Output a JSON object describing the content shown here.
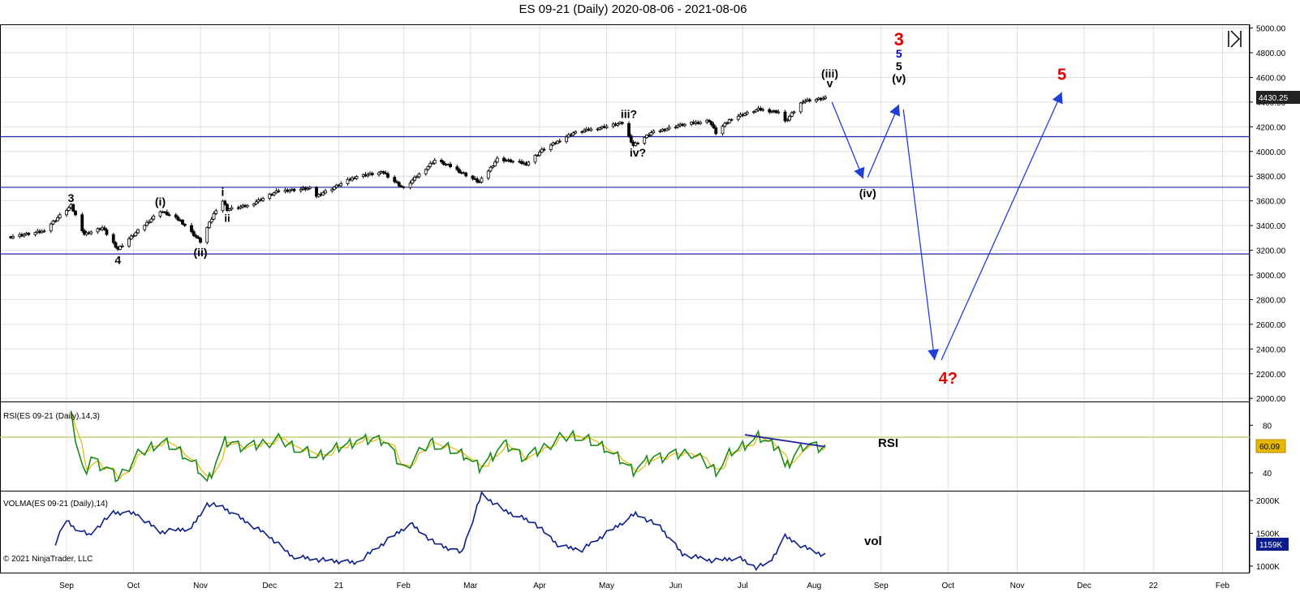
{
  "title": "ES 09-21 (Daily)  2020-08-06 - 2021-08-06",
  "copyright": "© 2021 NinjaTrader, LLC",
  "colors": {
    "grid": "#e0e0e0",
    "candle_up": "#ffffff",
    "candle_down": "#000000",
    "hline": "#2222aa",
    "arrow": "#1f3fd8",
    "rsi": "#1a8a1a",
    "rsi_avg": "#e8b800",
    "rsi_level": "#b5c95a",
    "vol": "#0a1d8a",
    "wave_black": "#000000",
    "wave_red": "#e00000",
    "wave_blue": "#0000cc"
  },
  "chart_data": [
    {
      "type": "candlestick",
      "title": "ES 09-21 (Daily)  2020-08-06 - 2021-08-06",
      "x_tick_labels": [
        "Sep",
        "Oct",
        "Nov",
        "Dec",
        "21",
        "Feb",
        "Mar",
        "Apr",
        "May",
        "Jun",
        "Jul",
        "Aug",
        "Sep",
        "Oct",
        "Nov",
        "Dec",
        "22",
        "Feb"
      ],
      "y_tick_labels": [
        "5000.00",
        "4800.00",
        "4600.00",
        "4400.00",
        "4200.00",
        "4000.00",
        "3800.00",
        "3600.00",
        "3400.00",
        "3200.00",
        "3000.00",
        "2800.00",
        "2600.00",
        "2400.00",
        "2200.00",
        "2000.00"
      ],
      "ylim": [
        1975,
        5030
      ],
      "last_price": "4430.25",
      "price_anchors": [
        [
          "2020-08-06",
          3310
        ],
        [
          "2020-08-20",
          3350
        ],
        [
          "2020-09-02",
          3560
        ],
        [
          "2020-09-08",
          3330
        ],
        [
          "2020-09-16",
          3380
        ],
        [
          "2020-09-23",
          3210
        ],
        [
          "2020-10-01",
          3340
        ],
        [
          "2020-10-12",
          3520
        ],
        [
          "2020-10-21",
          3440
        ],
        [
          "2020-10-30",
          3270
        ],
        [
          "2020-11-06",
          3530
        ],
        [
          "2020-11-09",
          3600
        ],
        [
          "2020-11-11",
          3530
        ],
        [
          "2020-11-20",
          3560
        ],
        [
          "2020-12-04",
          3680
        ],
        [
          "2020-12-18",
          3700
        ],
        [
          "2020-12-21",
          3640
        ],
        [
          "2021-01-08",
          3800
        ],
        [
          "2021-01-20",
          3830
        ],
        [
          "2021-01-29",
          3700
        ],
        [
          "2021-02-12",
          3930
        ],
        [
          "2021-02-19",
          3880
        ],
        [
          "2021-03-04",
          3750
        ],
        [
          "2021-03-12",
          3940
        ],
        [
          "2021-03-25",
          3900
        ],
        [
          "2021-04-01",
          4010
        ],
        [
          "2021-04-15",
          4150
        ],
        [
          "2021-04-29",
          4200
        ],
        [
          "2021-05-07",
          4230
        ],
        [
          "2021-05-12",
          4050
        ],
        [
          "2021-05-20",
          4150
        ],
        [
          "2021-06-01",
          4210
        ],
        [
          "2021-06-15",
          4250
        ],
        [
          "2021-06-18",
          4150
        ],
        [
          "2021-06-25",
          4270
        ],
        [
          "2021-07-07",
          4340
        ],
        [
          "2021-07-16",
          4320
        ],
        [
          "2021-07-19",
          4240
        ],
        [
          "2021-07-27",
          4410
        ],
        [
          "2021-08-06",
          4430
        ]
      ],
      "horizontal_lines": [
        4120,
        3710,
        3170
      ],
      "projection_path": [
        [
          "2021-08-09",
          4400
        ],
        [
          "2021-08-23",
          3780
        ],
        [
          "2021-08-25",
          3790
        ],
        [
          "2021-09-08",
          4380
        ],
        [
          "2021-09-10",
          4340
        ],
        [
          "2021-09-24",
          2310
        ],
        [
          "2021-09-27",
          2310
        ],
        [
          "2021-11-20",
          4480
        ]
      ],
      "wave_labels": [
        {
          "text": "3",
          "date": "2020-09-02",
          "price": 3590,
          "color": "black",
          "size": 14
        },
        {
          "text": "4",
          "date": "2020-09-23",
          "price": 3090,
          "color": "black",
          "size": 14
        },
        {
          "text": "(i)",
          "date": "2020-10-12",
          "price": 3560,
          "color": "black",
          "size": 14
        },
        {
          "text": "(ii)",
          "date": "2020-10-30",
          "price": 3150,
          "color": "black",
          "size": 14
        },
        {
          "text": "i",
          "date": "2020-11-09",
          "price": 3640,
          "color": "black",
          "size": 14
        },
        {
          "text": "ii",
          "date": "2020-11-11",
          "price": 3430,
          "color": "black",
          "size": 13
        },
        {
          "text": "iii?",
          "date": "2021-05-10",
          "price": 4270,
          "color": "black",
          "size": 14
        },
        {
          "text": "iv?",
          "date": "2021-05-14",
          "price": 3960,
          "color": "black",
          "size": 14
        },
        {
          "text": "(iii)",
          "date": "2021-08-08",
          "price": 4600,
          "color": "black",
          "size": 14
        },
        {
          "text": "v",
          "date": "2021-08-08",
          "price": 4520,
          "color": "black",
          "size": 14
        },
        {
          "text": "(iv)",
          "date": "2021-08-25",
          "price": 3630,
          "color": "black",
          "size": 14
        },
        {
          "text": "3",
          "date": "2021-09-08",
          "price": 4860,
          "color": "red",
          "size": 22
        },
        {
          "text": "5",
          "date": "2021-09-08",
          "price": 4760,
          "color": "blue",
          "size": 14
        },
        {
          "text": "5",
          "date": "2021-09-08",
          "price": 4660,
          "color": "black",
          "size": 14
        },
        {
          "text": "(v)",
          "date": "2021-09-08",
          "price": 4560,
          "color": "black",
          "size": 14
        },
        {
          "text": "4?",
          "date": "2021-09-30",
          "price": 2120,
          "color": "red",
          "size": 20
        },
        {
          "text": "5",
          "date": "2021-11-20",
          "price": 4580,
          "color": "red",
          "size": 20
        }
      ]
    },
    {
      "type": "line",
      "label": "RSI(ES 09-21 (Daily),14,3)",
      "annotation": "RSI",
      "y_tick_labels": [
        "80",
        "40"
      ],
      "ylim": [
        25,
        100
      ],
      "level": 70,
      "last_value": "60.09",
      "series_anchors": [
        [
          "2020-09-02",
          97
        ],
        [
          "2020-09-04",
          66
        ],
        [
          "2020-09-08",
          38
        ],
        [
          "2020-09-11",
          52
        ],
        [
          "2020-09-17",
          44
        ],
        [
          "2020-09-23",
          35
        ],
        [
          "2020-10-02",
          55
        ],
        [
          "2020-10-12",
          67
        ],
        [
          "2020-10-20",
          60
        ],
        [
          "2020-10-28",
          46
        ],
        [
          "2020-11-02",
          32
        ],
        [
          "2020-11-10",
          66
        ],
        [
          "2020-11-20",
          61
        ],
        [
          "2020-12-04",
          68
        ],
        [
          "2020-12-21",
          54
        ],
        [
          "2021-01-08",
          67
        ],
        [
          "2021-01-20",
          68
        ],
        [
          "2021-01-29",
          43
        ],
        [
          "2021-02-10",
          66
        ],
        [
          "2021-02-26",
          55
        ],
        [
          "2021-03-04",
          44
        ],
        [
          "2021-03-15",
          64
        ],
        [
          "2021-03-25",
          52
        ],
        [
          "2021-04-09",
          69
        ],
        [
          "2021-04-16",
          72
        ],
        [
          "2021-04-29",
          62
        ],
        [
          "2021-05-12",
          42
        ],
        [
          "2021-05-20",
          52
        ],
        [
          "2021-06-07",
          57
        ],
        [
          "2021-06-18",
          42
        ],
        [
          "2021-06-25",
          58
        ],
        [
          "2021-07-07",
          70
        ],
        [
          "2021-07-16",
          62
        ],
        [
          "2021-07-19",
          43
        ],
        [
          "2021-07-27",
          63
        ],
        [
          "2021-08-06",
          60
        ]
      ],
      "divergence_line": [
        [
          "2021-07-01",
          72
        ],
        [
          "2021-08-06",
          62
        ]
      ]
    },
    {
      "type": "line",
      "label": "VOLMA(ES 09-21 (Daily),14)",
      "annotation": "vol",
      "y_tick_labels": [
        "2000K",
        "1500K",
        "1000K"
      ],
      "ylim": [
        900,
        2150
      ],
      "last_value": "1159K",
      "series_anchors": [
        [
          "2020-08-26",
          1350
        ],
        [
          "2020-08-31",
          1700
        ],
        [
          "2020-09-03",
          1600
        ],
        [
          "2020-09-10",
          1470
        ],
        [
          "2020-09-21",
          1820
        ],
        [
          "2020-10-01",
          1800
        ],
        [
          "2020-10-12",
          1520
        ],
        [
          "2020-10-26",
          1580
        ],
        [
          "2020-11-02",
          1950
        ],
        [
          "2020-11-09",
          1900
        ],
        [
          "2020-11-30",
          1450
        ],
        [
          "2020-12-10",
          1150
        ],
        [
          "2020-12-21",
          1100
        ],
        [
          "2021-01-08",
          1050
        ],
        [
          "2021-01-20",
          1350
        ],
        [
          "2021-02-01",
          1650
        ],
        [
          "2021-02-12",
          1350
        ],
        [
          "2021-02-24",
          1200
        ],
        [
          "2021-03-05",
          2100
        ],
        [
          "2021-03-15",
          1850
        ],
        [
          "2021-03-29",
          1650
        ],
        [
          "2021-04-09",
          1300
        ],
        [
          "2021-04-19",
          1250
        ],
        [
          "2021-05-13",
          1800
        ],
        [
          "2021-05-24",
          1600
        ],
        [
          "2021-06-03",
          1180
        ],
        [
          "2021-06-17",
          1080
        ],
        [
          "2021-06-28",
          1130
        ],
        [
          "2021-07-06",
          980
        ],
        [
          "2021-07-12",
          1050
        ],
        [
          "2021-07-19",
          1450
        ],
        [
          "2021-07-28",
          1280
        ],
        [
          "2021-08-06",
          1159
        ]
      ]
    }
  ]
}
